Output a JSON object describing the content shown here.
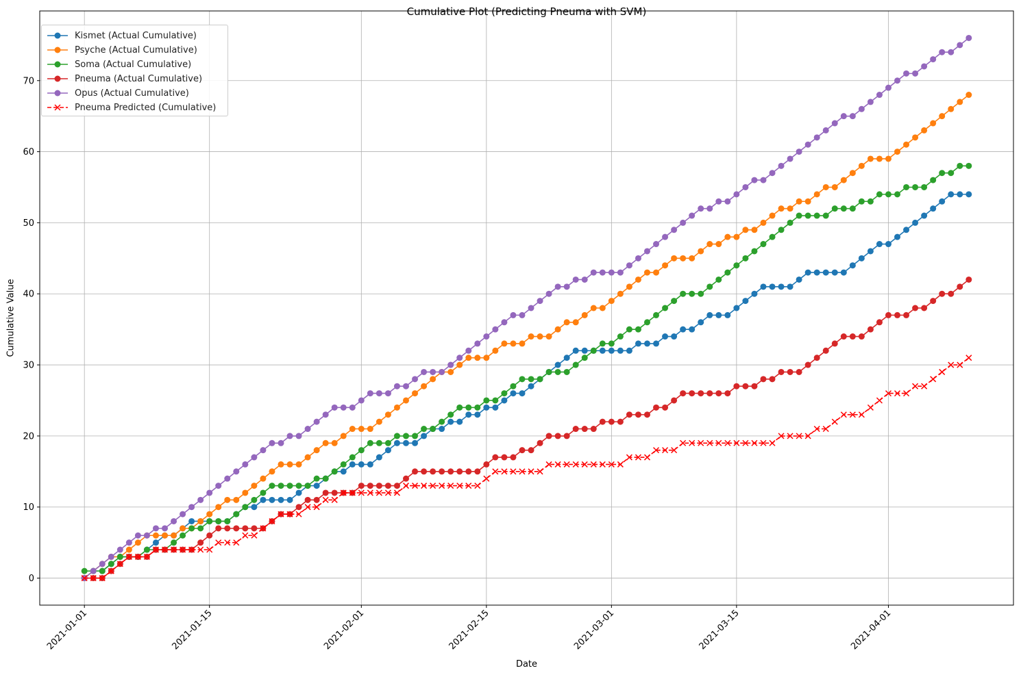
{
  "chart_data": {
    "type": "line",
    "title": "Cumulative Plot (Predicting Pneuma with SVM)",
    "xlabel": "Date",
    "ylabel": "Cumulative Value",
    "x_start": "2021-01-01",
    "x_end": "2021-04-10",
    "xlim": [
      "2020-12-27",
      "2021-04-15"
    ],
    "ylim": [
      -3.8,
      79.8
    ],
    "xticks": [
      "2021-01-01",
      "2021-01-15",
      "2021-02-01",
      "2021-02-15",
      "2021-03-01",
      "2021-03-15",
      "2021-04-01"
    ],
    "yticks": [
      0,
      10,
      20,
      30,
      40,
      50,
      60,
      70
    ],
    "grid": true,
    "legend_position": "top-left",
    "series": [
      {
        "name": "Kismet (Actual Cumulative)",
        "color": "#1f77b4",
        "marker": "circle",
        "linestyle": "solid",
        "values": [
          0,
          1,
          1,
          2,
          3,
          3,
          3,
          4,
          5,
          6,
          6,
          7,
          8,
          8,
          8,
          8,
          8,
          9,
          10,
          10,
          11,
          11,
          11,
          11,
          12,
          13,
          13,
          14,
          15,
          15,
          16,
          16,
          16,
          17,
          18,
          19,
          19,
          19,
          20,
          21,
          21,
          22,
          22,
          23,
          23,
          24,
          24,
          25,
          26,
          26,
          27,
          28,
          29,
          30,
          31,
          32,
          32,
          32,
          32,
          32,
          32,
          32,
          33,
          33,
          33,
          34,
          34,
          35,
          35,
          36,
          37,
          37,
          37,
          38,
          39,
          40,
          41,
          41,
          41,
          41,
          42,
          43,
          43,
          43,
          43,
          43,
          44,
          45,
          46,
          47,
          47,
          48,
          49,
          50,
          51,
          52,
          53,
          54,
          54,
          54
        ]
      },
      {
        "name": "Psyche (Actual Cumulative)",
        "color": "#ff7f0e",
        "marker": "circle",
        "linestyle": "solid",
        "values": [
          0,
          1,
          2,
          3,
          3,
          4,
          5,
          6,
          6,
          6,
          6,
          7,
          7,
          8,
          9,
          10,
          11,
          11,
          12,
          13,
          14,
          15,
          16,
          16,
          16,
          17,
          18,
          19,
          19,
          20,
          21,
          21,
          21,
          22,
          23,
          24,
          25,
          26,
          27,
          28,
          29,
          29,
          30,
          31,
          31,
          31,
          32,
          33,
          33,
          33,
          34,
          34,
          34,
          35,
          36,
          36,
          37,
          38,
          38,
          39,
          40,
          41,
          42,
          43,
          43,
          44,
          45,
          45,
          45,
          46,
          47,
          47,
          48,
          48,
          49,
          49,
          50,
          51,
          52,
          52,
          53,
          53,
          54,
          55,
          55,
          56,
          57,
          58,
          59,
          59,
          59,
          60,
          61,
          62,
          63,
          64,
          65,
          66,
          67,
          68
        ]
      },
      {
        "name": "Soma (Actual Cumulative)",
        "color": "#2ca02c",
        "marker": "circle",
        "linestyle": "solid",
        "values": [
          1,
          1,
          1,
          2,
          3,
          3,
          3,
          4,
          4,
          4,
          5,
          6,
          7,
          7,
          8,
          8,
          8,
          9,
          10,
          11,
          12,
          13,
          13,
          13,
          13,
          13,
          14,
          14,
          15,
          16,
          17,
          18,
          19,
          19,
          19,
          20,
          20,
          20,
          21,
          21,
          22,
          23,
          24,
          24,
          24,
          25,
          25,
          26,
          27,
          28,
          28,
          28,
          29,
          29,
          29,
          30,
          31,
          32,
          33,
          33,
          34,
          35,
          35,
          36,
          37,
          38,
          39,
          40,
          40,
          40,
          41,
          42,
          43,
          44,
          45,
          46,
          47,
          48,
          49,
          50,
          51,
          51,
          51,
          51,
          52,
          52,
          52,
          53,
          53,
          54,
          54,
          54,
          55,
          55,
          55,
          56,
          57,
          57,
          58,
          58
        ]
      },
      {
        "name": "Pneuma (Actual Cumulative)",
        "color": "#d62728",
        "marker": "circle",
        "linestyle": "solid",
        "values": [
          0,
          0,
          0,
          1,
          2,
          3,
          3,
          3,
          4,
          4,
          4,
          4,
          4,
          5,
          6,
          7,
          7,
          7,
          7,
          7,
          7,
          8,
          9,
          9,
          10,
          11,
          11,
          12,
          12,
          12,
          12,
          13,
          13,
          13,
          13,
          13,
          14,
          15,
          15,
          15,
          15,
          15,
          15,
          15,
          15,
          16,
          17,
          17,
          17,
          18,
          18,
          19,
          20,
          20,
          20,
          21,
          21,
          21,
          22,
          22,
          22,
          23,
          23,
          23,
          24,
          24,
          25,
          26,
          26,
          26,
          26,
          26,
          26,
          27,
          27,
          27,
          28,
          28,
          29,
          29,
          29,
          30,
          31,
          32,
          33,
          34,
          34,
          34,
          35,
          36,
          37,
          37,
          37,
          38,
          38,
          39,
          40,
          40,
          41,
          42
        ]
      },
      {
        "name": "Opus (Actual Cumulative)",
        "color": "#9467bd",
        "marker": "circle",
        "linestyle": "solid",
        "values": [
          0,
          1,
          2,
          3,
          4,
          5,
          6,
          6,
          7,
          7,
          8,
          9,
          10,
          11,
          12,
          13,
          14,
          15,
          16,
          17,
          18,
          19,
          19,
          20,
          20,
          21,
          22,
          23,
          24,
          24,
          24,
          25,
          26,
          26,
          26,
          27,
          27,
          28,
          29,
          29,
          29,
          30,
          31,
          32,
          33,
          34,
          35,
          36,
          37,
          37,
          38,
          39,
          40,
          41,
          41,
          42,
          42,
          43,
          43,
          43,
          43,
          44,
          45,
          46,
          47,
          48,
          49,
          50,
          51,
          52,
          52,
          53,
          53,
          54,
          55,
          56,
          56,
          57,
          58,
          59,
          60,
          61,
          62,
          63,
          64,
          65,
          65,
          66,
          67,
          68,
          69,
          70,
          71,
          71,
          72,
          73,
          74,
          74,
          75,
          76
        ]
      },
      {
        "name": "Pneuma Predicted (Cumulative)",
        "color": "#ff0000",
        "marker": "x",
        "linestyle": "dashed",
        "values": [
          0,
          0,
          0,
          1,
          2,
          3,
          3,
          3,
          4,
          4,
          4,
          4,
          4,
          4,
          4,
          5,
          5,
          5,
          6,
          6,
          7,
          8,
          9,
          9,
          9,
          10,
          10,
          11,
          11,
          12,
          12,
          12,
          12,
          12,
          12,
          12,
          13,
          13,
          13,
          13,
          13,
          13,
          13,
          13,
          13,
          14,
          15,
          15,
          15,
          15,
          15,
          15,
          16,
          16,
          16,
          16,
          16,
          16,
          16,
          16,
          16,
          17,
          17,
          17,
          18,
          18,
          18,
          19,
          19,
          19,
          19,
          19,
          19,
          19,
          19,
          19,
          19,
          19,
          20,
          20,
          20,
          20,
          21,
          21,
          22,
          23,
          23,
          23,
          24,
          25,
          26,
          26,
          26,
          27,
          27,
          28,
          29,
          30,
          30,
          31
        ]
      }
    ]
  }
}
